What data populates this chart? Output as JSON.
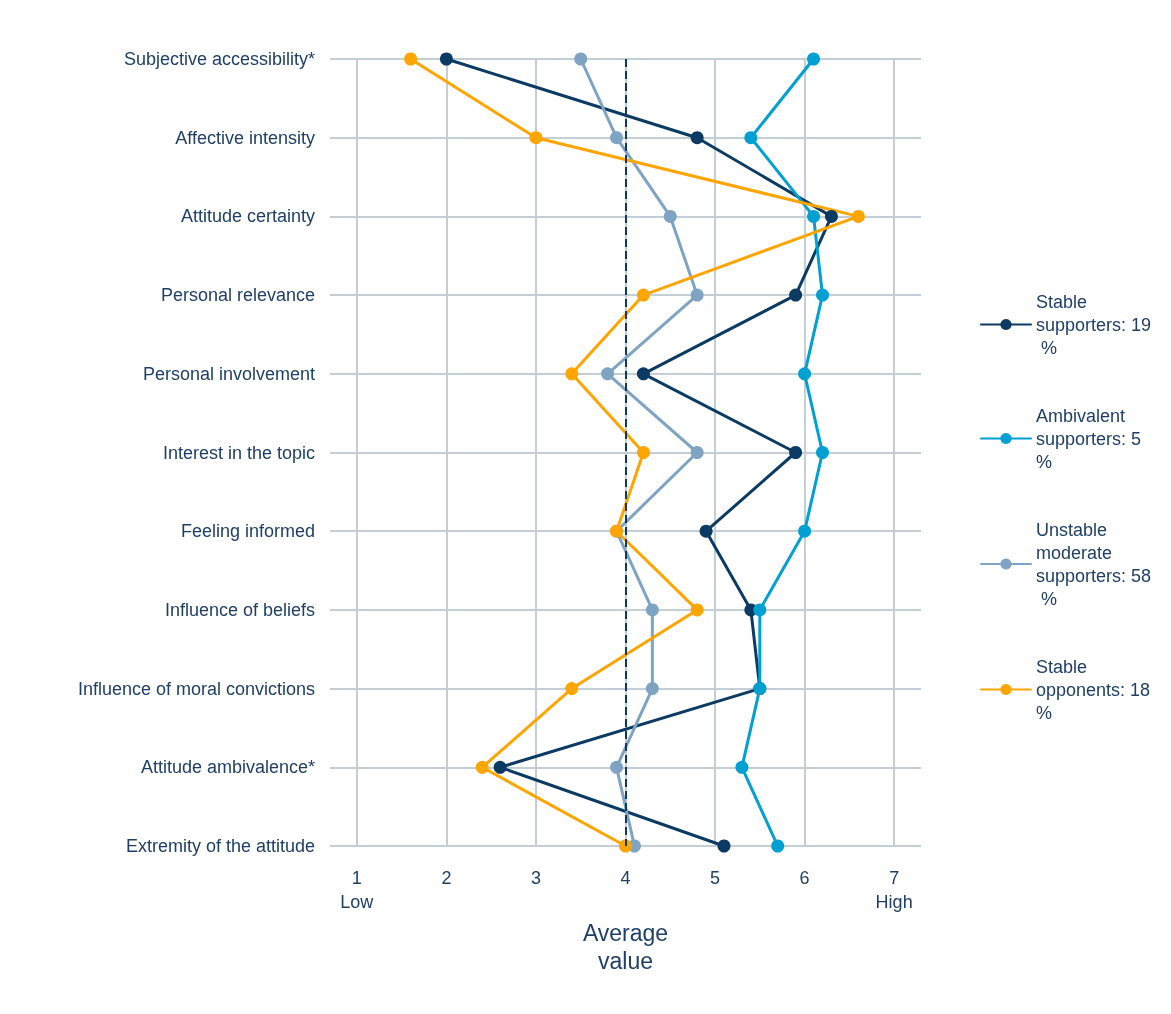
{
  "chart_data": {
    "type": "line",
    "orientation": "horizontal",
    "xlabel": "Average value",
    "categories": [
      "Subjective accessibility*",
      "Affective intensity",
      "Attitude certainty",
      "Personal relevance",
      "Personal involvement",
      "Interest in the topic",
      "Feeling informed",
      "Influence of beliefs",
      "Influence of moral convictions",
      "Attitude ambivalence*",
      "Extremity of the attitude"
    ],
    "series": [
      {
        "name": "Stable supporters: 19 %",
        "color": "#0b3a63",
        "values": [
          2.0,
          4.8,
          6.3,
          5.9,
          4.2,
          5.9,
          4.9,
          5.4,
          5.5,
          2.6,
          5.1
        ]
      },
      {
        "name": "Ambivalent supporters: 5 %",
        "color": "#00a0d2",
        "values": [
          6.1,
          5.4,
          6.1,
          6.2,
          6.0,
          6.2,
          6.0,
          5.5,
          5.5,
          5.3,
          5.7
        ]
      },
      {
        "name": "Unstable moderate supporters: 58 %",
        "color": "#7fa3c2",
        "values": [
          3.5,
          3.9,
          4.5,
          4.8,
          3.8,
          4.8,
          3.9,
          4.3,
          4.3,
          3.9,
          4.1
        ]
      },
      {
        "name": "Stable opponents: 18 %",
        "color": "#ffa500",
        "values": [
          1.6,
          3.0,
          6.6,
          4.2,
          3.4,
          4.2,
          3.9,
          4.8,
          3.4,
          2.4,
          4.0
        ]
      }
    ],
    "xlim": [
      0.7,
      7.3
    ],
    "xticks": [
      {
        "value": 1,
        "label": "1\nLow"
      },
      2,
      3,
      4,
      5,
      6,
      {
        "value": 7,
        "label": "7\nHigh"
      }
    ],
    "ref_lines": [
      {
        "axis": "x",
        "value": 4,
        "color": "#0b3a63",
        "line_style": "dashed"
      }
    ],
    "grid": true,
    "legend": "right",
    "marker": "circle",
    "line_style": "solid"
  }
}
